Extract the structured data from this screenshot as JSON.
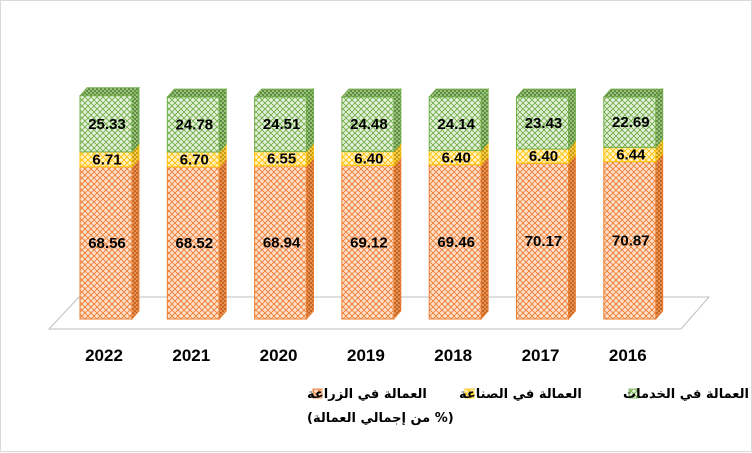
{
  "chart_data": {
    "type": "bar",
    "stacked": true,
    "categories": [
      "2022",
      "2021",
      "2020",
      "2019",
      "2018",
      "2017",
      "2016"
    ],
    "series": [
      {
        "name": "العمالة في الزراعة",
        "key": "agriculture",
        "color": "#f4b183",
        "stroke": "#ed7d31",
        "values": [
          68.56,
          68.52,
          68.94,
          69.12,
          69.46,
          70.17,
          70.87
        ]
      },
      {
        "name": "العمالة في الصناعة",
        "key": "industry",
        "color": "#ffe699",
        "stroke": "#ffc000",
        "values": [
          6.71,
          6.7,
          6.55,
          6.4,
          6.4,
          6.4,
          6.44
        ]
      },
      {
        "name": "العمالة في الخدمات",
        "key": "services",
        "color": "#c5e0b4",
        "stroke": "#70ad47",
        "values": [
          25.33,
          24.78,
          24.51,
          24.48,
          24.14,
          23.43,
          22.69
        ]
      }
    ],
    "value_labels": {
      "agriculture": [
        "68.56",
        "68.52",
        "68.94",
        "69.12",
        "69.46",
        "70.17",
        "70.87"
      ],
      "industry": [
        "6.71",
        "6.70",
        "6.55",
        "6.40",
        "6.40",
        "6.40",
        "6.44"
      ],
      "services": [
        "25.33",
        "24.78",
        "24.51",
        "24.48",
        "24.14",
        "23.43",
        "22.69"
      ]
    },
    "unit_note": "(% من إجمالي العمالة)",
    "ylim": [
      0,
      100
    ],
    "legend_position": "bottom"
  }
}
